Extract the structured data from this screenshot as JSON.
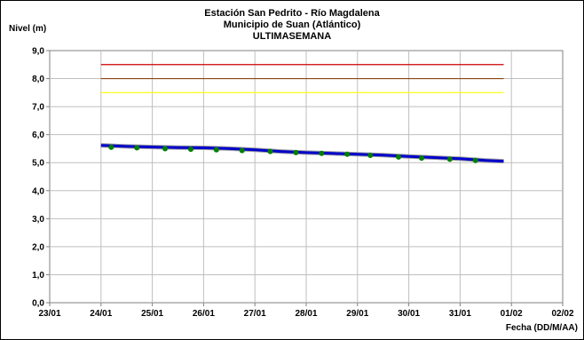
{
  "chart_data": {
    "type": "line",
    "title": [
      "Estación San Pedrito - Río Magdalena",
      "Municipio de Suan (Atlántico)",
      "ULTIMASEMANA"
    ],
    "ylabel": "Nivel (m)",
    "xlabel": "Fecha (DD/M/AA)",
    "x_ticks": [
      "23/01",
      "24/01",
      "25/01",
      "26/01",
      "27/01",
      "28/01",
      "29/01",
      "30/01",
      "31/01",
      "01/02",
      "02/02"
    ],
    "y_ticks": [
      "0,0",
      "1,0",
      "2,0",
      "3,0",
      "4,0",
      "5,0",
      "6,0",
      "7,0",
      "8,0",
      "9,0"
    ],
    "xlim": [
      0,
      10
    ],
    "ylim": [
      0,
      9
    ],
    "grid": true,
    "reference_lines": [
      {
        "y": 8.5,
        "x_start": 1,
        "x_end": 8.85,
        "color": "#cc0000"
      },
      {
        "y": 8.0,
        "x_start": 1,
        "x_end": 8.85,
        "color": "#8b4513"
      },
      {
        "y": 7.5,
        "x_start": 1,
        "x_end": 8.85,
        "color": "#ffff00"
      }
    ],
    "series": [
      {
        "type": "line",
        "color": "#0000cc",
        "points": [
          [
            1.0,
            5.62
          ],
          [
            1.5,
            5.58
          ],
          [
            2.0,
            5.56
          ],
          [
            2.5,
            5.54
          ],
          [
            3.0,
            5.53
          ],
          [
            3.5,
            5.5
          ],
          [
            4.0,
            5.46
          ],
          [
            4.5,
            5.4
          ],
          [
            5.0,
            5.36
          ],
          [
            5.5,
            5.33
          ],
          [
            6.0,
            5.3
          ],
          [
            6.5,
            5.27
          ],
          [
            7.0,
            5.22
          ],
          [
            7.5,
            5.18
          ],
          [
            8.0,
            5.14
          ],
          [
            8.5,
            5.08
          ],
          [
            8.85,
            5.05
          ]
        ]
      },
      {
        "type": "scatter",
        "color": "#008000",
        "points": [
          [
            1.2,
            5.55
          ],
          [
            1.7,
            5.53
          ],
          [
            2.25,
            5.5
          ],
          [
            2.75,
            5.48
          ],
          [
            3.25,
            5.46
          ],
          [
            3.75,
            5.43
          ],
          [
            4.3,
            5.4
          ],
          [
            4.8,
            5.36
          ],
          [
            5.3,
            5.33
          ],
          [
            5.8,
            5.3
          ],
          [
            6.25,
            5.26
          ],
          [
            6.8,
            5.2
          ],
          [
            7.25,
            5.16
          ],
          [
            7.8,
            5.12
          ],
          [
            8.3,
            5.08
          ]
        ]
      }
    ]
  }
}
